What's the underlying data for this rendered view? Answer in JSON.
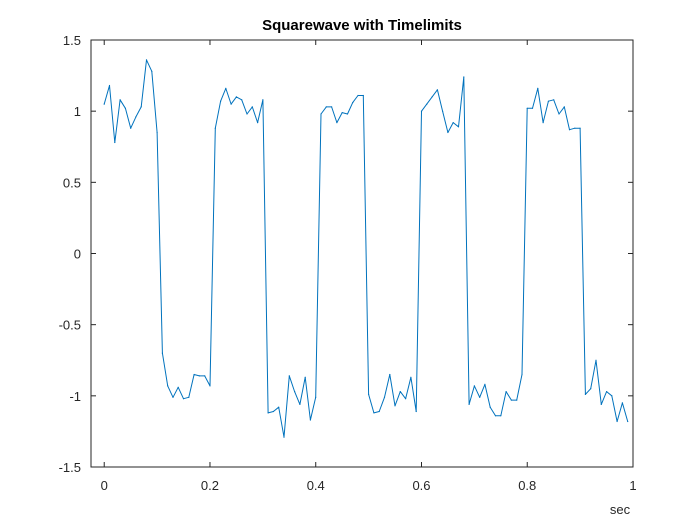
{
  "chart_data": {
    "type": "line",
    "title": "Squarewave with Timelimits",
    "xlabel": "sec",
    "ylabel": "",
    "xlim": [
      -0.025,
      1.0
    ],
    "ylim": [
      -1.5,
      1.5
    ],
    "xticks": [
      0,
      0.2,
      0.4,
      0.6,
      0.8,
      1
    ],
    "xtick_labels": [
      "0",
      "0.2",
      "0.4",
      "0.6",
      "0.8",
      "1"
    ],
    "yticks": [
      -1.5,
      -1,
      -0.5,
      0,
      0.5,
      1,
      1.5
    ],
    "ytick_labels": [
      "-1.5",
      "-1",
      "-0.5",
      "0",
      "0.5",
      "1",
      "1.5"
    ],
    "grid": false,
    "line_color": "#0072BD",
    "series": [
      {
        "x": [
          0,
          0.01,
          0.02,
          0.03,
          0.04,
          0.05,
          0.06,
          0.07,
          0.08,
          0.09,
          0.1,
          0.11,
          0.12,
          0.13,
          0.14,
          0.15,
          0.16,
          0.17,
          0.18,
          0.19,
          0.2,
          0.21,
          0.22,
          0.23,
          0.24,
          0.25,
          0.26,
          0.27,
          0.28,
          0.29,
          0.3,
          0.31,
          0.32,
          0.33,
          0.34,
          0.35,
          0.36,
          0.37,
          0.38,
          0.39,
          0.4,
          0.41,
          0.42,
          0.43,
          0.44,
          0.45,
          0.46,
          0.47,
          0.48,
          0.49,
          0.5,
          0.51,
          0.52,
          0.53,
          0.54,
          0.55,
          0.56,
          0.57,
          0.58,
          0.59,
          0.6,
          0.61,
          0.62,
          0.63,
          0.64,
          0.65,
          0.66,
          0.67,
          0.68,
          0.69,
          0.7,
          0.71,
          0.72,
          0.73,
          0.74,
          0.75,
          0.76,
          0.77,
          0.78,
          0.79,
          0.8,
          0.81,
          0.82,
          0.83,
          0.84,
          0.85,
          0.86,
          0.87,
          0.88,
          0.89,
          0.9,
          0.91,
          0.92,
          0.93,
          0.94,
          0.95,
          0.96,
          0.97,
          0.98,
          0.99
        ],
        "y": [
          1.05,
          1.18,
          0.78,
          1.08,
          1.02,
          0.88,
          0.96,
          1.03,
          1.36,
          1.28,
          0.85,
          -0.7,
          -0.93,
          -1.01,
          -0.94,
          -1.02,
          -1.01,
          -0.85,
          -0.86,
          -0.86,
          -0.93,
          0.88,
          1.07,
          1.16,
          1.05,
          1.1,
          1.08,
          0.98,
          1.03,
          0.92,
          1.08,
          -1.12,
          -1.11,
          -1.08,
          -1.29,
          -0.86,
          -0.97,
          -1.06,
          -0.87,
          -1.17,
          -1.01,
          0.98,
          1.03,
          1.03,
          0.92,
          0.99,
          0.98,
          1.06,
          1.11,
          1.11,
          -0.99,
          -1.12,
          -1.11,
          -1.01,
          -0.85,
          -1.07,
          -0.97,
          -1.02,
          -0.87,
          -1.11,
          1.0,
          1.05,
          1.1,
          1.15,
          1.0,
          0.85,
          0.92,
          0.89,
          1.24,
          -1.06,
          -0.93,
          -1.01,
          -0.92,
          -1.08,
          -1.14,
          -1.14,
          -0.97,
          -1.03,
          -1.03,
          -0.85,
          1.02,
          1.02,
          1.16,
          0.92,
          1.07,
          1.08,
          0.98,
          1.03,
          0.87,
          0.88,
          0.88,
          -0.99,
          -0.95,
          -0.75,
          -1.06,
          -0.97,
          -1.0,
          -1.18,
          -1.05,
          -1.18
        ]
      }
    ]
  }
}
